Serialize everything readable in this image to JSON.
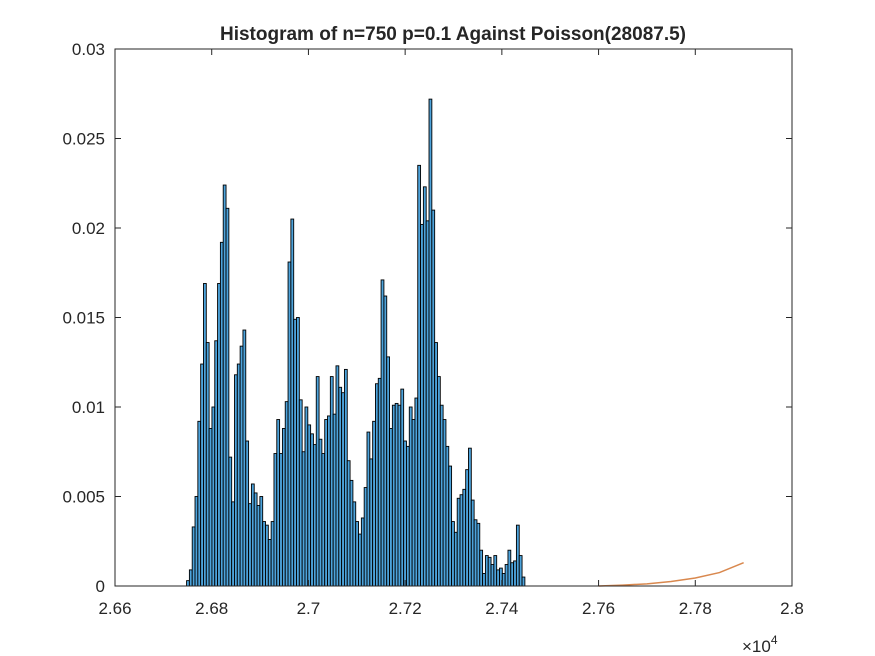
{
  "chart_data": {
    "type": "bar",
    "title": "Histogram of n=750 p=0.1 Against Poisson(28087.5)",
    "xlabel": "",
    "ylabel": "",
    "xlim": [
      26600,
      28000
    ],
    "ylim": [
      0,
      0.03
    ],
    "x_ticks": [
      26600,
      26800,
      27000,
      27200,
      27400,
      27600,
      27800,
      28000
    ],
    "x_tick_labels": [
      "2.66",
      "2.68",
      "2.7",
      "2.72",
      "2.74",
      "2.76",
      "2.78",
      "2.8"
    ],
    "x_exponent_label": "×10",
    "x_exponent_power": "4",
    "y_ticks": [
      0,
      0.005,
      0.01,
      0.015,
      0.02,
      0.025,
      0.03
    ],
    "y_tick_labels": [
      "0",
      "0.005",
      "0.01",
      "0.015",
      "0.02",
      "0.025",
      "0.03"
    ],
    "grid": false,
    "bin_width": 5.83,
    "bin_start": 26748,
    "bar_color": "#4DA3DB",
    "bar_edge_color": "#000000",
    "curve_color": "#D9884E",
    "series": [
      {
        "values": [
          0.0003,
          0.0009,
          0.0033,
          0.005,
          0.0092,
          0.0124,
          0.0169,
          0.0136,
          0.0088,
          0.01,
          0.0137,
          0.0169,
          0.0192,
          0.0224,
          0.0211,
          0.0072,
          0.0047,
          0.0118,
          0.0124,
          0.0134,
          0.0143,
          0.0081,
          0.0046,
          0.0057,
          0.0052,
          0.0045,
          0.005,
          0.0036,
          0.0034,
          0.0026,
          0.0036,
          0.0074,
          0.0093,
          0.0074,
          0.0088,
          0.0103,
          0.0181,
          0.0205,
          0.0149,
          0.015,
          0.0104,
          0.0075,
          0.01,
          0.009,
          0.0085,
          0.0079,
          0.0117,
          0.0082,
          0.0074,
          0.0093,
          0.0095,
          0.0117,
          0.0096,
          0.0123,
          0.0111,
          0.0108,
          0.0121,
          0.007,
          0.0059,
          0.0047,
          0.0036,
          0.0029,
          0.0038,
          0.0055,
          0.0086,
          0.0071,
          0.0092,
          0.0113,
          0.0116,
          0.0171,
          0.0162,
          0.0128,
          0.0088,
          0.0101,
          0.0102,
          0.0101,
          0.011,
          0.0081,
          0.0078,
          0.01,
          0.0093,
          0.0105,
          0.0235,
          0.0202,
          0.0223,
          0.0204,
          0.0272,
          0.021,
          0.0136,
          0.0117,
          0.0101,
          0.0093,
          0.0078,
          0.0067,
          0.0036,
          0.003,
          0.0049,
          0.0051,
          0.0054,
          0.0065,
          0.0077,
          0.0048,
          0.0037,
          0.0035,
          0.002,
          0.0007,
          0.0017,
          0.0016,
          0.0012,
          0.0017,
          0.0009,
          0.001,
          0.0007,
          0.0012,
          0.002,
          0.0013,
          0.0014,
          0.0034,
          0.0017,
          0.0005
        ]
      },
      {
        "type": "line",
        "x": [
          27600,
          27650,
          27700,
          27750,
          27800,
          27850,
          27900
        ],
        "values": [
          0,
          5e-05,
          0.00012,
          0.00025,
          0.00045,
          0.00075,
          0.0013
        ]
      }
    ]
  }
}
